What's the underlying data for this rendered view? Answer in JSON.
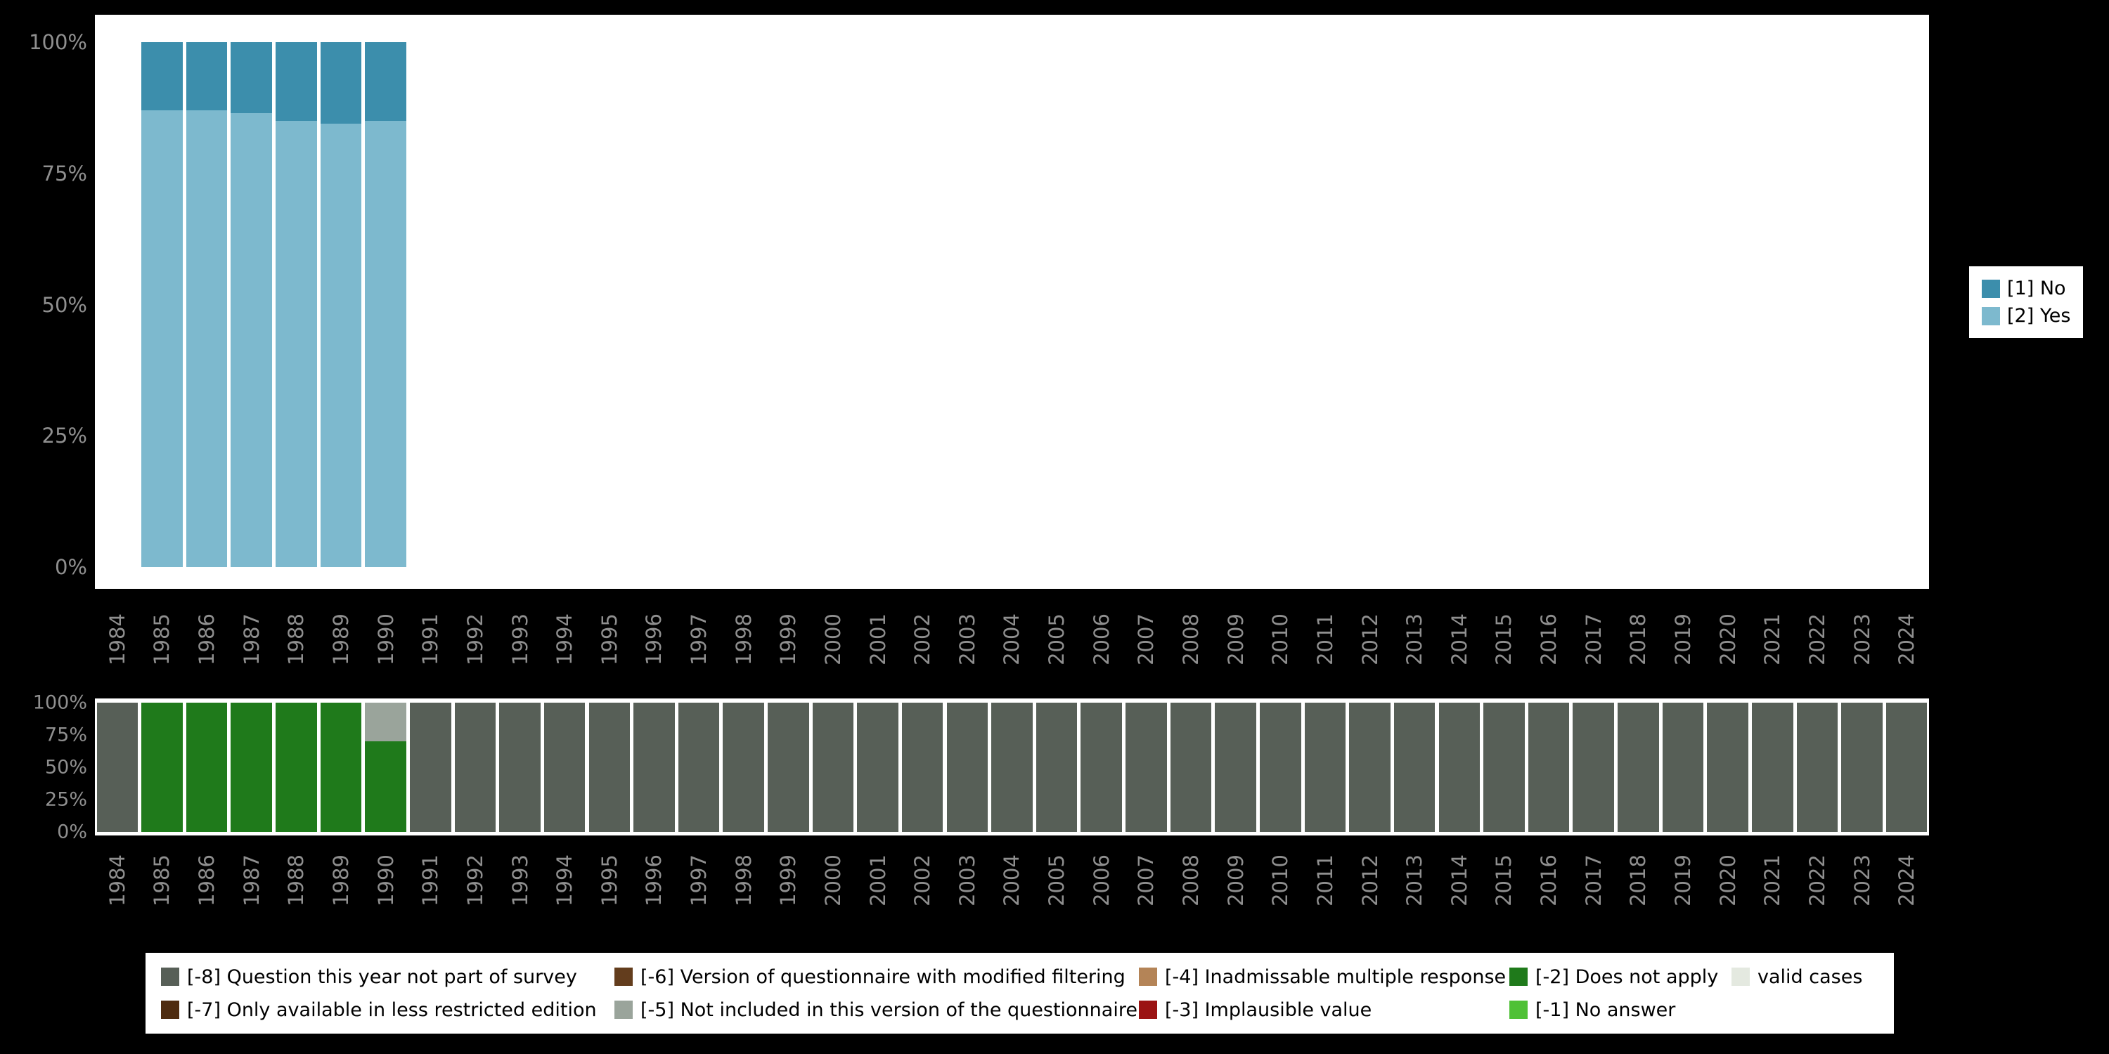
{
  "colors": {
    "background": "#000000",
    "plot_background": "#ffffff",
    "axis_text": "#8f8f8f",
    "legend_text": "#000000",
    "no": "#3c8eac",
    "yes": "#7db9ce",
    "m8": "#575f57",
    "m7": "#4f2c10",
    "m6": "#633d1d",
    "m5": "#9aa49b",
    "m4": "#b48457",
    "m3": "#9b1313",
    "m2": "#1f7a1b",
    "m1": "#4fc136",
    "valid": "#e4e9e0"
  },
  "chart_data": [
    {
      "type": "bar",
      "stacked": true,
      "title": "",
      "xlabel": "",
      "ylabel": "",
      "ylim": [
        0,
        100
      ],
      "grid": false,
      "legend_position": "right",
      "yticks": [
        "100%",
        "75%",
        "50%",
        "25%",
        "0%"
      ],
      "categories": [
        "1984",
        "1985",
        "1986",
        "1987",
        "1988",
        "1989",
        "1990",
        "1991",
        "1992",
        "1993",
        "1994",
        "1995",
        "1996",
        "1997",
        "1998",
        "1999",
        "2000",
        "2001",
        "2002",
        "2003",
        "2004",
        "2005",
        "2006",
        "2007",
        "2008",
        "2009",
        "2010",
        "2011",
        "2012",
        "2013",
        "2014",
        "2015",
        "2016",
        "2017",
        "2018",
        "2019",
        "2020",
        "2021",
        "2022",
        "2023",
        "2024"
      ],
      "series": [
        {
          "name": "[2] Yes",
          "color": "#7db9ce",
          "values": [
            0,
            87,
            87,
            86.5,
            85,
            84.5,
            85,
            0,
            0,
            0,
            0,
            0,
            0,
            0,
            0,
            0,
            0,
            0,
            0,
            0,
            0,
            0,
            0,
            0,
            0,
            0,
            0,
            0,
            0,
            0,
            0,
            0,
            0,
            0,
            0,
            0,
            0,
            0,
            0,
            0,
            0
          ]
        },
        {
          "name": "[1] No",
          "color": "#3c8eac",
          "values": [
            0,
            13,
            13,
            13.5,
            15,
            15.5,
            15,
            0,
            0,
            0,
            0,
            0,
            0,
            0,
            0,
            0,
            0,
            0,
            0,
            0,
            0,
            0,
            0,
            0,
            0,
            0,
            0,
            0,
            0,
            0,
            0,
            0,
            0,
            0,
            0,
            0,
            0,
            0,
            0,
            0,
            0
          ]
        }
      ]
    },
    {
      "type": "bar",
      "stacked": true,
      "title": "",
      "xlabel": "",
      "ylabel": "",
      "ylim": [
        0,
        100
      ],
      "grid": false,
      "legend_position": "bottom",
      "yticks": [
        "100%",
        "75%",
        "50%",
        "25%",
        "0%"
      ],
      "categories": [
        "1984",
        "1985",
        "1986",
        "1987",
        "1988",
        "1989",
        "1990",
        "1991",
        "1992",
        "1993",
        "1994",
        "1995",
        "1996",
        "1997",
        "1998",
        "1999",
        "2000",
        "2001",
        "2002",
        "2003",
        "2004",
        "2005",
        "2006",
        "2007",
        "2008",
        "2009",
        "2010",
        "2011",
        "2012",
        "2013",
        "2014",
        "2015",
        "2016",
        "2017",
        "2018",
        "2019",
        "2020",
        "2021",
        "2022",
        "2023",
        "2024"
      ],
      "series": [
        {
          "name": "[-8] Question this year not part of survey",
          "color": "#575f57",
          "values": [
            100,
            0,
            0,
            0,
            0,
            0,
            0,
            100,
            100,
            100,
            100,
            100,
            100,
            100,
            100,
            100,
            100,
            100,
            100,
            100,
            100,
            100,
            100,
            100,
            100,
            100,
            100,
            100,
            100,
            100,
            100,
            100,
            100,
            100,
            100,
            100,
            100,
            100,
            100,
            100,
            100
          ]
        },
        {
          "name": "[-2] Does not apply",
          "color": "#1f7a1b",
          "values": [
            0,
            100,
            100,
            100,
            100,
            100,
            70,
            0,
            0,
            0,
            0,
            0,
            0,
            0,
            0,
            0,
            0,
            0,
            0,
            0,
            0,
            0,
            0,
            0,
            0,
            0,
            0,
            0,
            0,
            0,
            0,
            0,
            0,
            0,
            0,
            0,
            0,
            0,
            0,
            0,
            0
          ]
        },
        {
          "name": "[-5] Not included in this version of the questionnaire",
          "color": "#9aa49b",
          "values": [
            0,
            0,
            0,
            0,
            0,
            0,
            30,
            0,
            0,
            0,
            0,
            0,
            0,
            0,
            0,
            0,
            0,
            0,
            0,
            0,
            0,
            0,
            0,
            0,
            0,
            0,
            0,
            0,
            0,
            0,
            0,
            0,
            0,
            0,
            0,
            0,
            0,
            0,
            0,
            0,
            0
          ]
        }
      ]
    }
  ],
  "legend_right": {
    "items": [
      {
        "label": "[1] No",
        "color": "#3c8eac"
      },
      {
        "label": "[2] Yes",
        "color": "#7db9ce"
      }
    ]
  },
  "legend_bottom": {
    "rows": [
      [
        {
          "label": "[-8] Question this year not part of survey",
          "color": "#575f57"
        },
        {
          "label": "[-6] Version of questionnaire with modified filtering",
          "color": "#633d1d"
        },
        {
          "label": "[-4] Inadmissable multiple response",
          "color": "#b48457"
        },
        {
          "label": "[-2] Does not apply",
          "color": "#1f7a1b"
        },
        {
          "label": "valid cases",
          "color": "#e4e9e0"
        }
      ],
      [
        {
          "label": "[-7] Only available in less restricted edition",
          "color": "#4f2c10"
        },
        {
          "label": "[-5] Not included in this version of the questionnaire",
          "color": "#9aa49b"
        },
        {
          "label": "[-3] Implausible value",
          "color": "#9b1313"
        },
        {
          "label": "[-1] No answer",
          "color": "#4fc136"
        }
      ]
    ]
  }
}
